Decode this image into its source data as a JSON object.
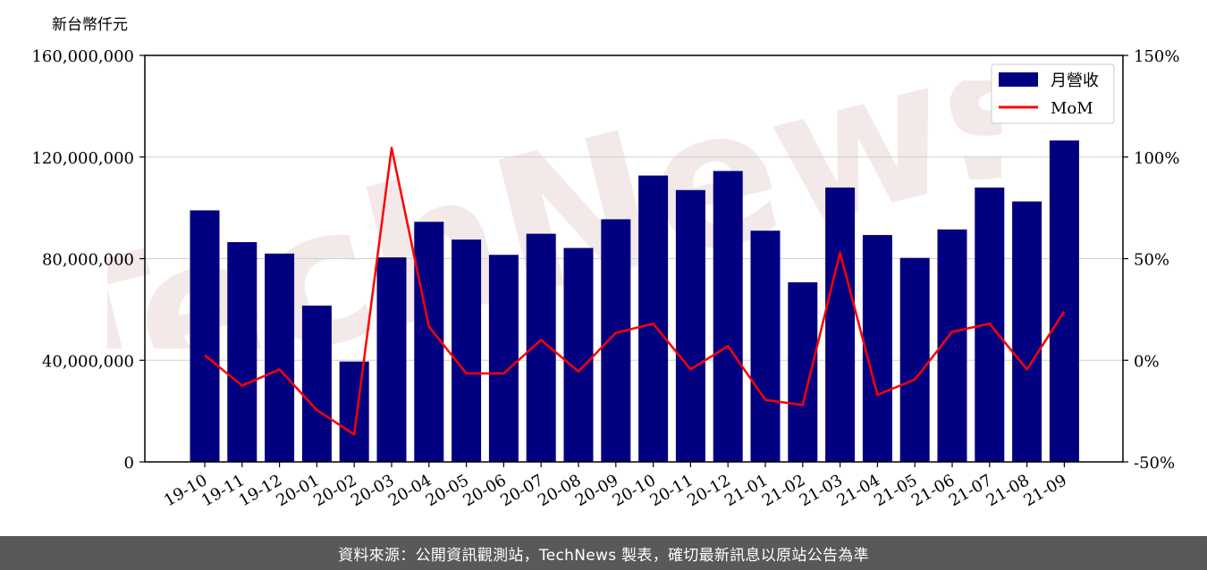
{
  "chart_data": {
    "type": "bar",
    "unit_label": "新台幣仟元",
    "categories": [
      "19-10",
      "19-11",
      "19-12",
      "20-01",
      "20-02",
      "20-03",
      "20-04",
      "20-05",
      "20-06",
      "20-07",
      "20-08",
      "20-09",
      "20-10",
      "20-11",
      "20-12",
      "21-01",
      "21-02",
      "21-03",
      "21-04",
      "21-05",
      "21-06",
      "21-07",
      "21-08",
      "21-09"
    ],
    "series": [
      {
        "name": "月營收",
        "type": "bar",
        "axis": "left",
        "color": "#000080",
        "values": [
          99000000,
          86500000,
          82000000,
          61500000,
          39500000,
          80500000,
          94500000,
          87500000,
          81500000,
          89800000,
          84200000,
          95500000,
          112700000,
          107000000,
          114500000,
          91000000,
          70700000,
          108000000,
          89300000,
          80300000,
          91500000,
          108000000,
          102500000,
          126500000
        ]
      },
      {
        "name": "MoM",
        "type": "line",
        "axis": "right",
        "color": "#ff0000",
        "values": [
          2.5,
          -12.5,
          -4.5,
          -24.5,
          -36.5,
          104.5,
          16.5,
          -6.5,
          -6.5,
          10.0,
          -5.5,
          13.5,
          18.0,
          -4.5,
          7.0,
          -19.5,
          -22.0,
          53.0,
          -17.0,
          -9.5,
          14.0,
          18.0,
          -4.5,
          24.0
        ]
      }
    ],
    "y_left": {
      "ylim": [
        0,
        160000000
      ],
      "ticks": [
        "0",
        "40,000,000",
        "80,000,000",
        "120,000,000",
        "160,000,000"
      ],
      "tick_values": [
        0,
        40000000,
        80000000,
        120000000,
        160000000
      ]
    },
    "y_right": {
      "ylim": [
        -50,
        150
      ],
      "ticks": [
        "-50%",
        "0%",
        "50%",
        "100%",
        "150%"
      ],
      "tick_values": [
        -50,
        0,
        50,
        100,
        150
      ]
    },
    "grid": "horizontal",
    "legend_position": "top-right"
  },
  "watermark": "TechNews",
  "footer": {
    "source_text": "資料來源：公開資訊觀測站，TechNews 製表，確切最新訊息以原站公告為準"
  }
}
